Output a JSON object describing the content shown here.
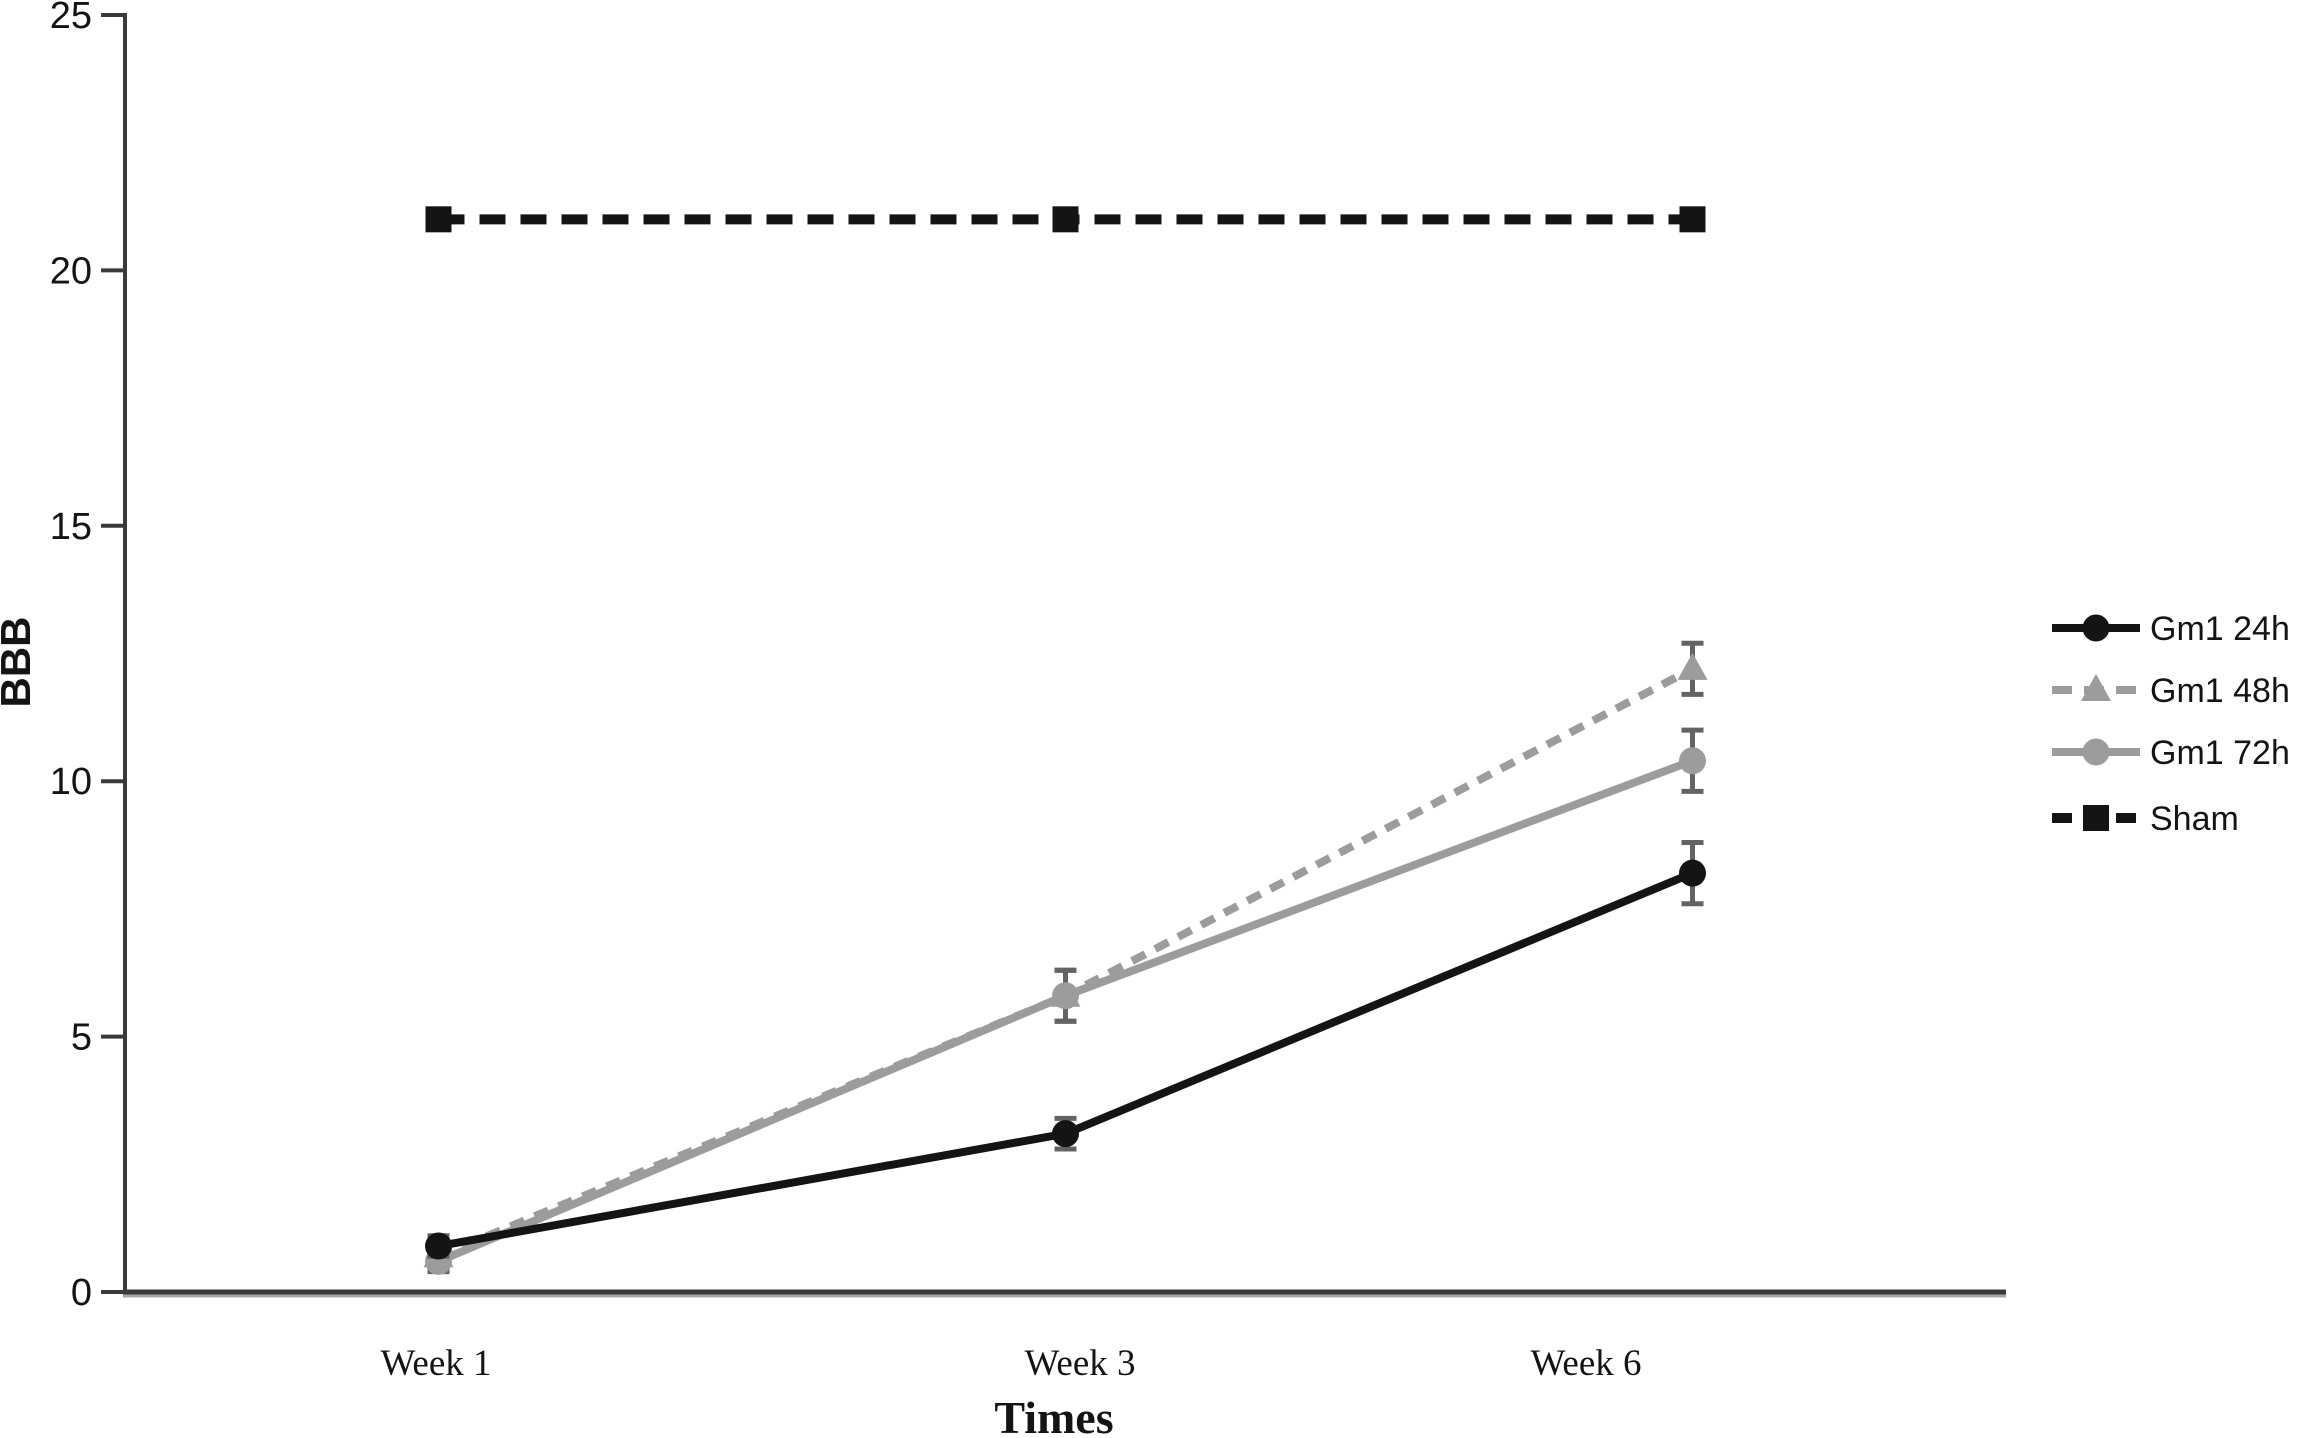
{
  "chart_data": {
    "type": "line",
    "title": "",
    "xlabel": "Times",
    "ylabel": "BBB",
    "categories": [
      "Week 1",
      "Week 3",
      "Week 6"
    ],
    "ylim": [
      0,
      25
    ],
    "yticks": [
      0,
      5,
      10,
      15,
      20,
      25
    ],
    "grid": false,
    "legend_position": "right",
    "error_bar_color": "#636363",
    "axis_color": "#3a3a3a",
    "series": [
      {
        "name": "Gm1 24h",
        "values": [
          0.9,
          3.1,
          8.2
        ],
        "errors": [
          0.2,
          0.3,
          0.6
        ],
        "color": "#141414",
        "line_style": "solid",
        "marker": "circle"
      },
      {
        "name": "Gm1 48h",
        "values": [
          0.7,
          5.8,
          12.2
        ],
        "errors": [
          0.2,
          0.5,
          0.5
        ],
        "color": "#9c9c9c",
        "line_style": "dashed",
        "marker": "triangle"
      },
      {
        "name": "Gm1 72h",
        "values": [
          0.6,
          5.8,
          10.4
        ],
        "errors": [
          0.2,
          0.5,
          0.6
        ],
        "color": "#9c9c9c",
        "line_style": "solid",
        "marker": "circle"
      },
      {
        "name": "Sham",
        "values": [
          21,
          21,
          21
        ],
        "errors": [
          0,
          0,
          0
        ],
        "color": "#141414",
        "line_style": "dashed",
        "marker": "square"
      }
    ]
  }
}
